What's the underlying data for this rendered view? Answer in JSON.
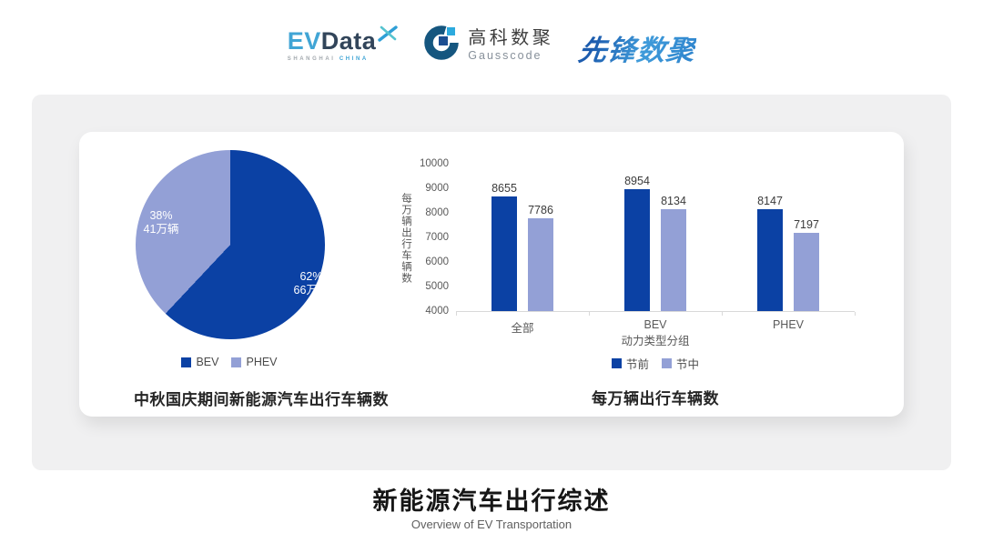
{
  "header": {
    "evdata": {
      "ev": "EV",
      "data": "Data",
      "x_icon": "x-spark-icon",
      "sub_left": "SHANGHAI",
      "sub_right": "CHINA"
    },
    "gausscode": {
      "icon": "g-circle-icon",
      "cn": "高科数聚",
      "en": "Gausscode"
    },
    "xianfeng": {
      "text": "先锋数聚"
    }
  },
  "chart_data": [
    {
      "type": "pie",
      "title": "中秋国庆期间新能源汽车出行车辆数",
      "start_angle": "top",
      "direction": "clockwise",
      "legend_position": "bottom",
      "slices": [
        {
          "name": "BEV",
          "pct": 62,
          "pct_label": "62%",
          "amount_label": "66万辆",
          "color": "#0b41a4"
        },
        {
          "name": "PHEV",
          "pct": 38,
          "pct_label": "38%",
          "amount_label": "41万辆",
          "color": "#93a0d6"
        }
      ]
    },
    {
      "type": "bar",
      "title": "每万辆出行车辆数",
      "categories": [
        "全部",
        "BEV",
        "PHEV"
      ],
      "series": [
        {
          "name": "节前",
          "values": [
            8655,
            8954,
            8147
          ],
          "color": "#0b41a4"
        },
        {
          "name": "节中",
          "values": [
            7786,
            8134,
            7197
          ],
          "color": "#93a0d6"
        }
      ],
      "xlabel": "动力类型分组",
      "ylabel": "每万辆出行车辆数",
      "ylim": [
        4000,
        10000
      ],
      "yticks": [
        10000,
        9000,
        8000,
        7000,
        6000,
        5000,
        4000
      ],
      "grid": false,
      "legend_position": "bottom"
    }
  ],
  "footer": {
    "title": "新能源汽车出行综述",
    "subtitle": "Overview of EV Transportation"
  }
}
